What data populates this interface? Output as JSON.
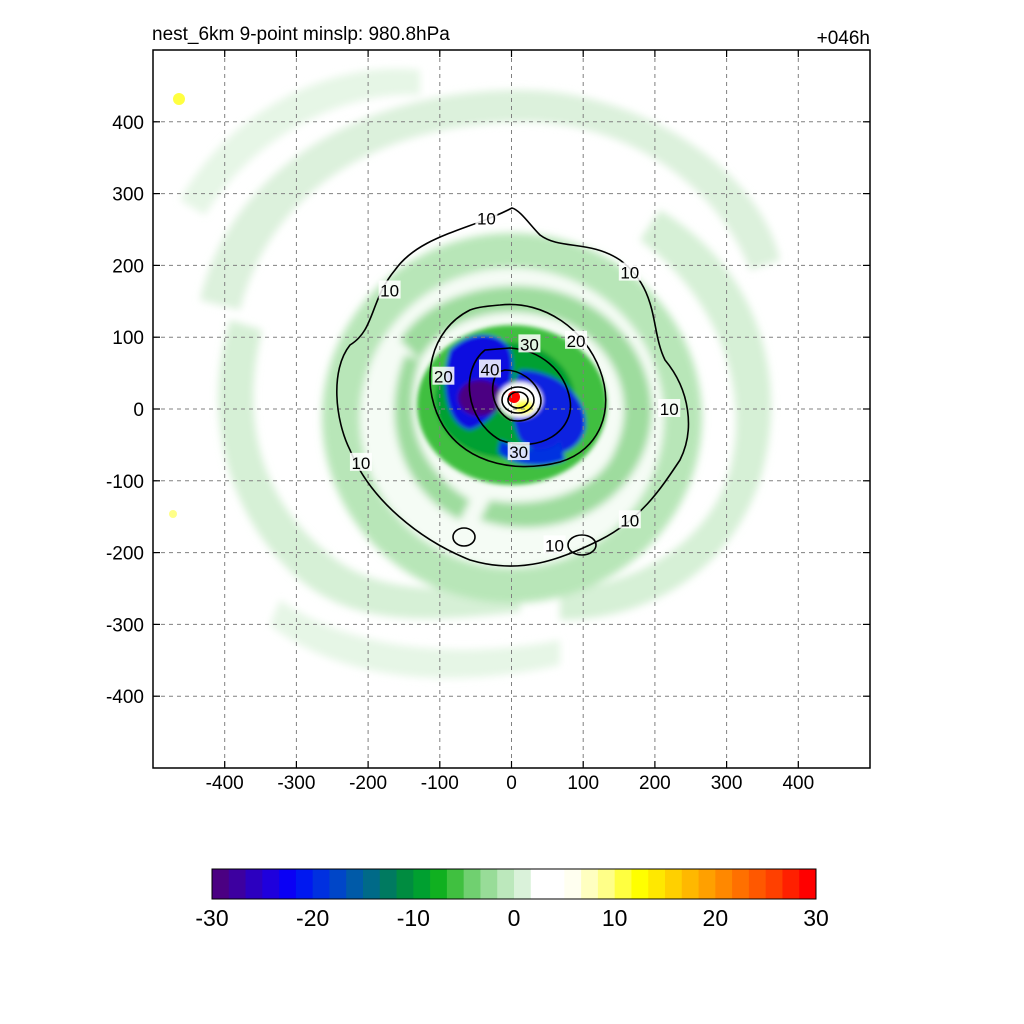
{
  "chart_data": {
    "type": "contour",
    "title_left": "nest_6km  9-point minslp: 980.8hPa",
    "title_right": "+046h",
    "xlabel": "",
    "ylabel": "",
    "xlim": [
      -500,
      500
    ],
    "ylim": [
      -500,
      500
    ],
    "x_ticks": [
      -400,
      -300,
      -200,
      -100,
      0,
      100,
      200,
      300,
      400
    ],
    "y_ticks": [
      400,
      300,
      200,
      100,
      0,
      -100,
      -200,
      -300,
      -400
    ],
    "grid": true,
    "grid_style": "dashed",
    "contour_levels": [
      10,
      20,
      30,
      40
    ],
    "contour_labels": [
      {
        "text": "10",
        "x": -35,
        "y": 265
      },
      {
        "text": "10",
        "x": 165,
        "y": 190
      },
      {
        "text": "10",
        "x": -170,
        "y": 165
      },
      {
        "text": "10",
        "x": 220,
        "y": 0
      },
      {
        "text": "10",
        "x": -210,
        "y": -75
      },
      {
        "text": "10",
        "x": 165,
        "y": -155
      },
      {
        "text": "10",
        "x": 60,
        "y": -190
      },
      {
        "text": "20",
        "x": 90,
        "y": 95
      },
      {
        "text": "20",
        "x": -95,
        "y": 45
      },
      {
        "text": "30",
        "x": 25,
        "y": 90
      },
      {
        "text": "30",
        "x": 10,
        "y": -60
      },
      {
        "text": "40",
        "x": -30,
        "y": 55
      }
    ],
    "storm_center": {
      "x": 5,
      "y": 15
    },
    "colorbar": {
      "min": -30,
      "max": 30,
      "tick_labels": [
        "-30",
        "-20",
        "-10",
        "0",
        "10",
        "20",
        "30"
      ],
      "colors": [
        "#4b0082",
        "#3d00a0",
        "#2c00c0",
        "#1f00dd",
        "#0a00f5",
        "#0018f0",
        "#0030e0",
        "#0046c8",
        "#005aa8",
        "#006a88",
        "#007a60",
        "#008c40",
        "#00a030",
        "#10b020",
        "#40c040",
        "#70d070",
        "#98dc98",
        "#bce8bc",
        "#daf2da",
        "#ffffff",
        "#ffffff",
        "#fffff0",
        "#ffffc0",
        "#ffff88",
        "#ffff40",
        "#ffff00",
        "#ffe800",
        "#ffd000",
        "#ffb800",
        "#ffa000",
        "#ff8800",
        "#ff7000",
        "#ff5800",
        "#ff4000",
        "#ff2000",
        "#ff0000"
      ]
    }
  }
}
